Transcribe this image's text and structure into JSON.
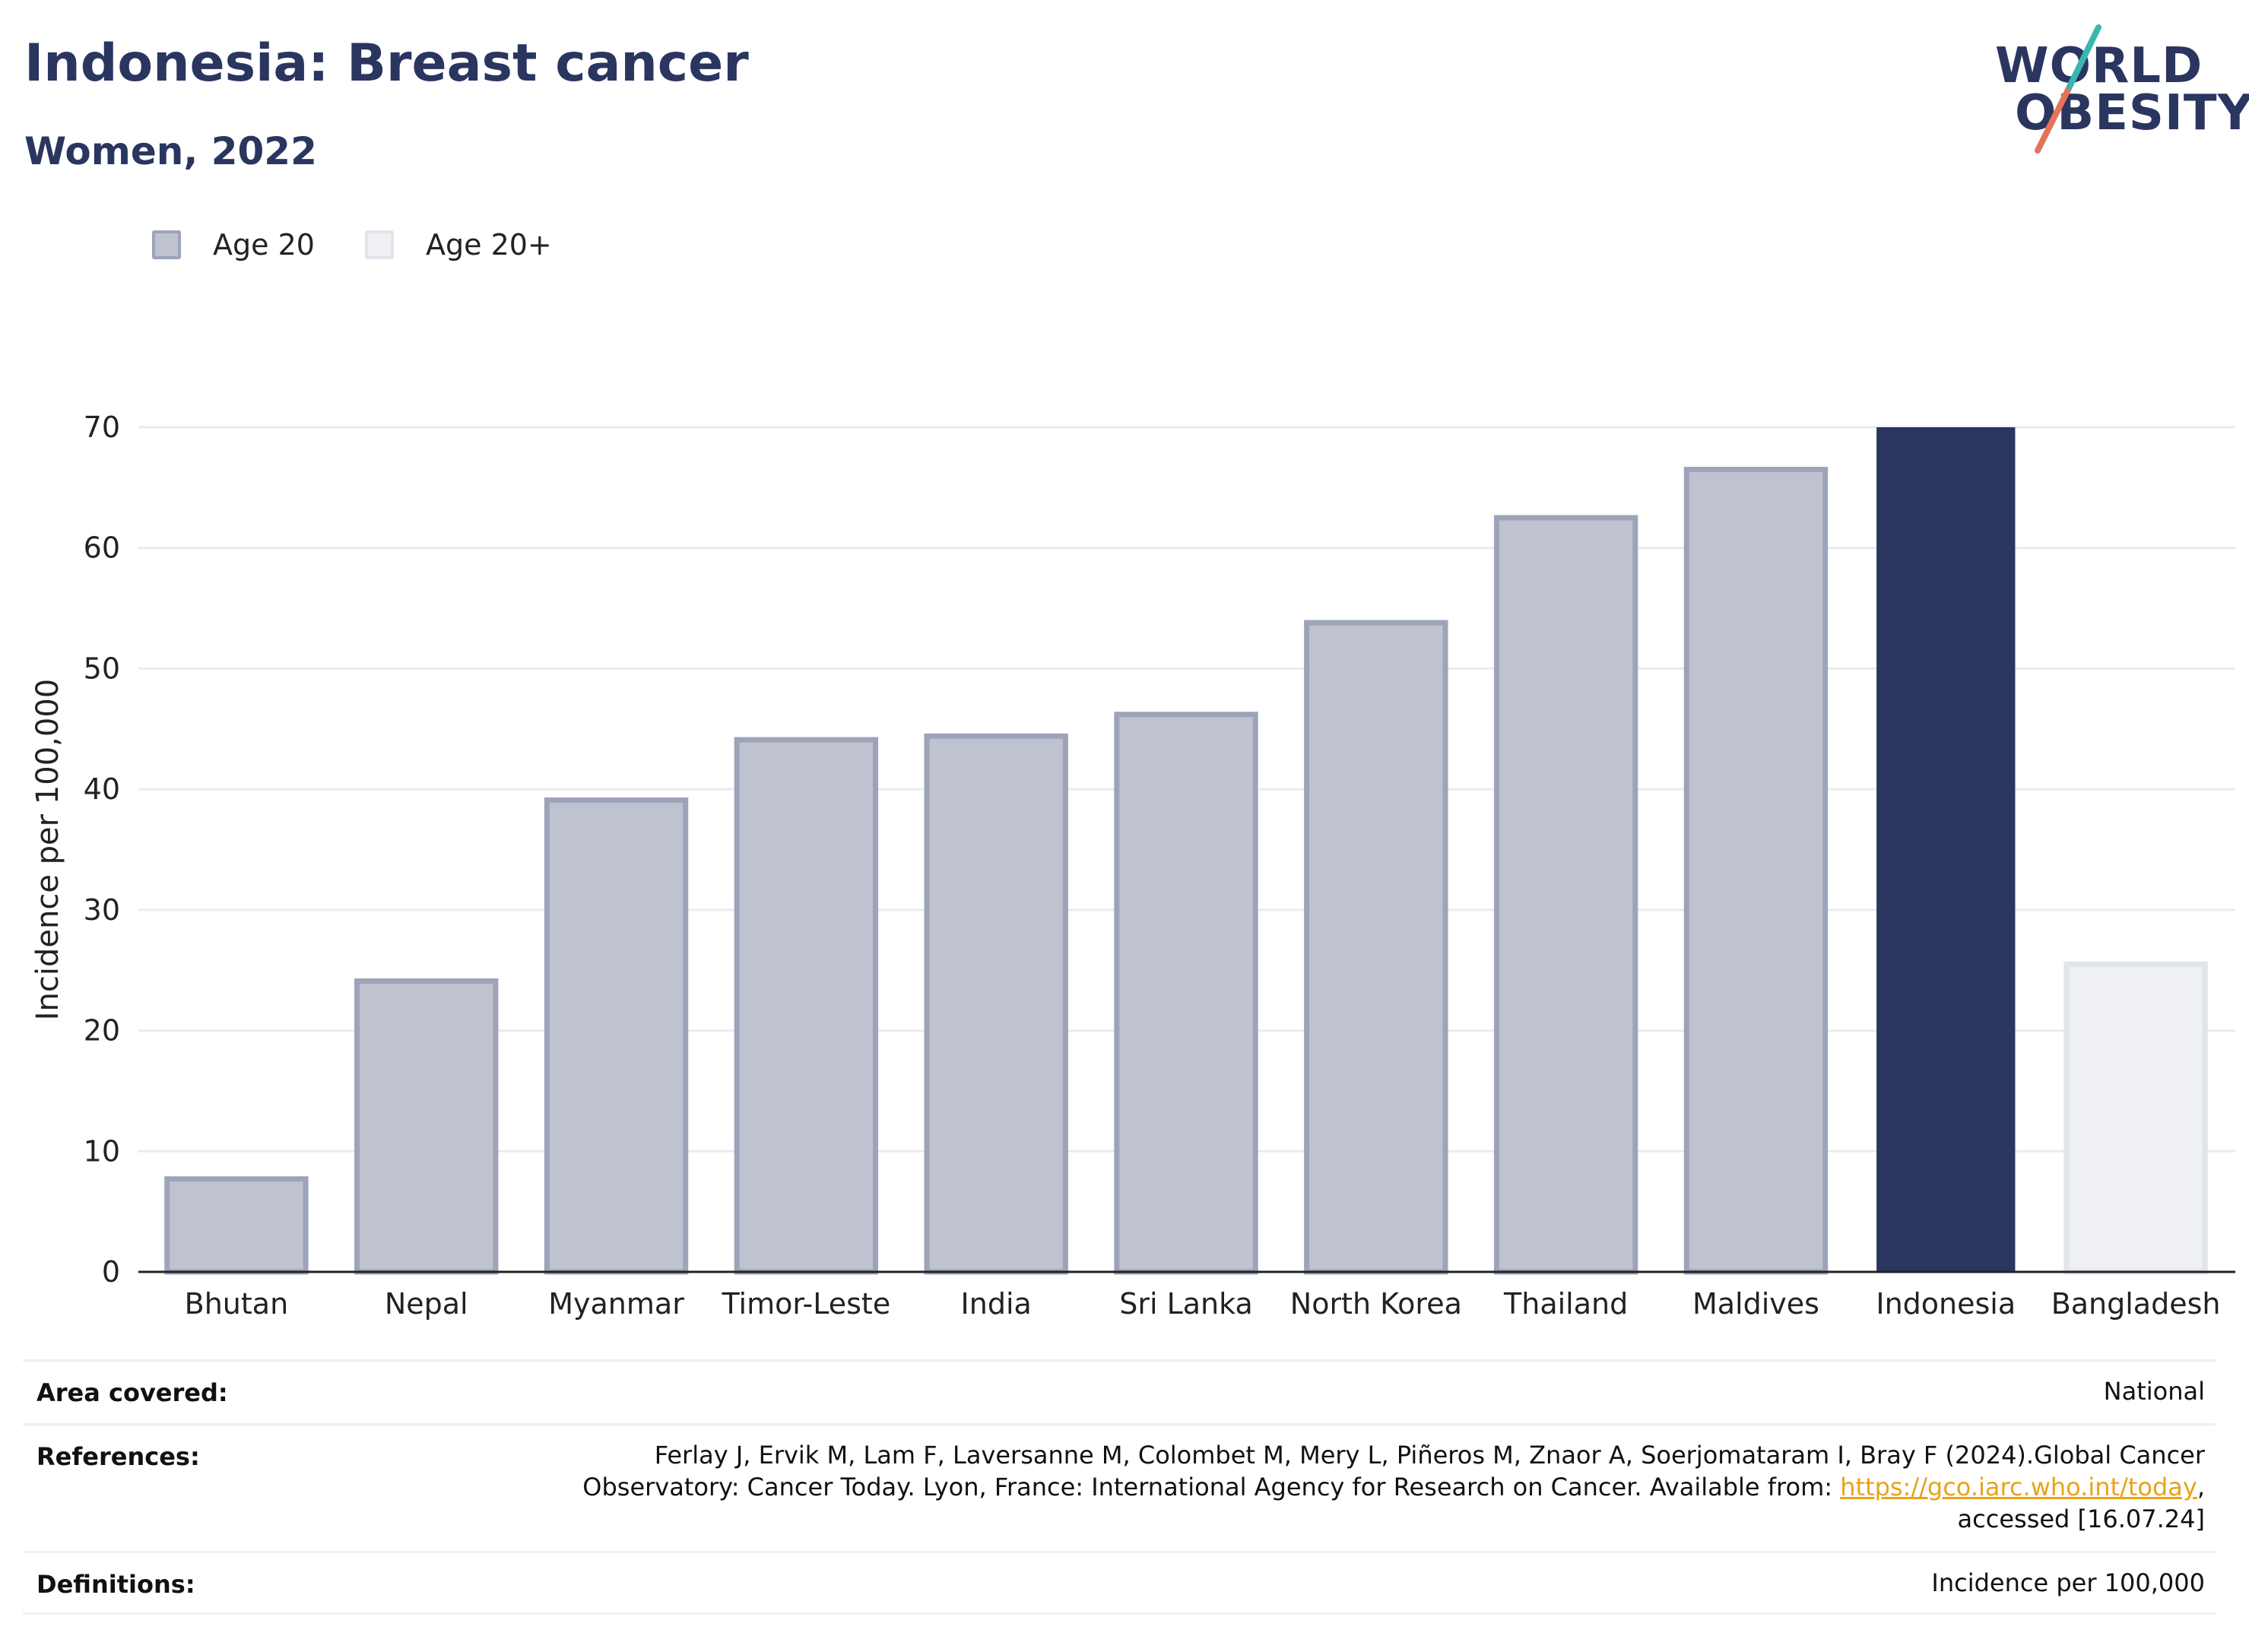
{
  "header": {
    "title": "Indonesia: Breast cancer",
    "subtitle": "Women, 2022"
  },
  "logo": {
    "line1": "WORLD",
    "line2": "OBESITY",
    "text": "WORLD OBESITY",
    "icon": "world-obesity-logo-slash"
  },
  "legend": [
    {
      "label": "Age 20",
      "color": "#bfc3d0",
      "border": "#9da3b8"
    },
    {
      "label": "Age 20+",
      "color": "#eef0f4",
      "border": "#e2e4eb"
    }
  ],
  "chart_data": {
    "type": "bar",
    "title": "Indonesia: Breast cancer",
    "subtitle": "Women, 2022",
    "ylabel": "Incidence per 100,000",
    "xlabel": "",
    "ylim": [
      0,
      70
    ],
    "yticks": [
      0,
      10,
      20,
      30,
      40,
      50,
      60,
      70
    ],
    "grid": true,
    "legend_position": "top-left",
    "categories": [
      "Bhutan",
      "Nepal",
      "Myanmar",
      "Timor-Leste",
      "India",
      "Sri Lanka",
      "North Korea",
      "Thailand",
      "Maldives",
      "Indonesia",
      "Bangladesh"
    ],
    "values": [
      7.7,
      24.1,
      39.1,
      44.1,
      44.4,
      46.2,
      53.8,
      62.5,
      66.5,
      70.0,
      25.5
    ],
    "series_membership": [
      "Age 20",
      "Age 20",
      "Age 20",
      "Age 20",
      "Age 20",
      "Age 20",
      "Age 20",
      "Age 20",
      "Age 20",
      "highlight",
      "Age 20+"
    ],
    "colors": {
      "age20_fill": "#bfc3d0",
      "age20_border": "#9da3b8",
      "highlight_fill": "#2a3560",
      "age20plus_fill": "#eef0f4",
      "age20plus_border": "#e2e4eb",
      "grid": "#e9ebf0",
      "axis": "#222222"
    }
  },
  "meta": {
    "area_label": "Area covered:",
    "area_value": "National",
    "references_label": "References:",
    "references_line1": "Ferlay J, Ervik M, Lam F, Laversanne M, Colombet M, Mery L, Piñeros M, Znaor A, Soerjomataram I, Bray F (2024).Global Cancer",
    "references_line2_pre": "Observatory: Cancer Today. Lyon, France: International Agency for Research on Cancer. Available from: ",
    "references_link": "https://gco.iarc.who.int/today",
    "references_line2_post": ",",
    "references_line3": "accessed [16.07.24]",
    "definitions_label": "Definitions:",
    "definitions_value": "Incidence per 100,000"
  }
}
